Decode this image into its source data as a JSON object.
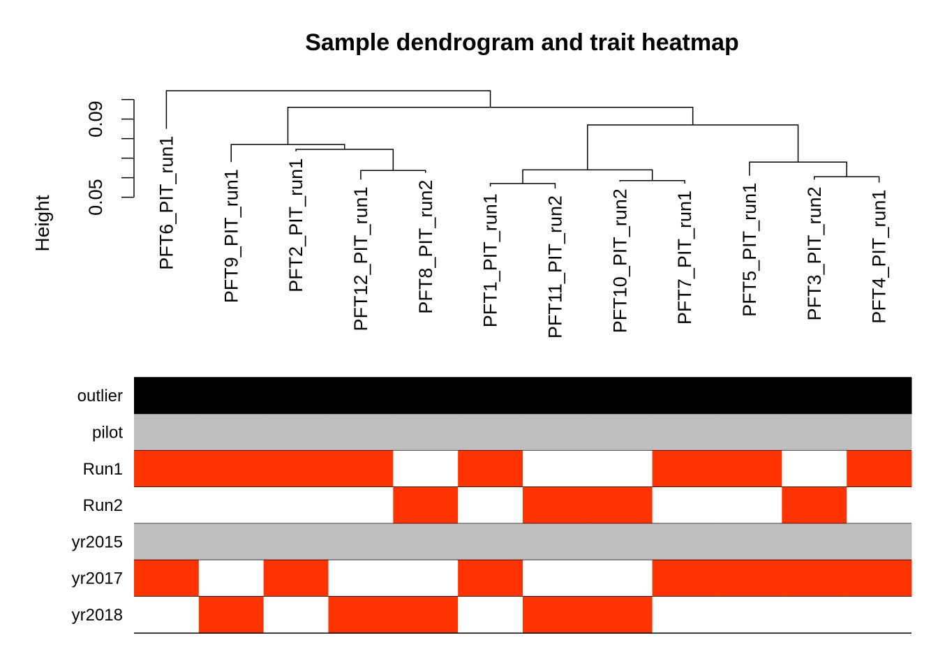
{
  "chart_data": {
    "type": "dendrogram-heatmap",
    "title": "Sample dendrogram and trait heatmap",
    "ylabel": "Height",
    "yticks": [
      0.05,
      0.09
    ],
    "ylim": [
      0.047,
      0.1045
    ],
    "leaves": [
      {
        "name": "PFT6_PIT_run1",
        "height": 0.085
      },
      {
        "name": "PFT9_PIT_run1",
        "height": 0.068
      },
      {
        "name": "PFT2_PIT_run1",
        "height": 0.0735
      },
      {
        "name": "PFT12_PIT_run1",
        "height": 0.059
      },
      {
        "name": "PFT8_PIT_run2",
        "height": 0.0625
      },
      {
        "name": "PFT1_PIT_run1",
        "height": 0.0555
      },
      {
        "name": "PFT11_PIT_run2",
        "height": 0.0545
      },
      {
        "name": "PFT10_PIT_run2",
        "height": 0.058
      },
      {
        "name": "PFT7_PIT_run1",
        "height": 0.057
      },
      {
        "name": "PFT5_PIT_run1",
        "height": 0.061
      },
      {
        "name": "PFT3_PIT_run2",
        "height": 0.059
      },
      {
        "name": "PFT4_PIT_run1",
        "height": 0.0575
      }
    ],
    "merges": [
      {
        "id": "n1",
        "children": [
          "PFT12_PIT_run1",
          "PFT8_PIT_run2"
        ],
        "height": 0.0637
      },
      {
        "id": "n2",
        "children": [
          "PFT2_PIT_run1",
          "n1"
        ],
        "height": 0.0745
      },
      {
        "id": "n3",
        "children": [
          "PFT9_PIT_run1",
          "n2"
        ],
        "height": 0.077
      },
      {
        "id": "n4",
        "children": [
          "PFT1_PIT_run1",
          "PFT11_PIT_run2"
        ],
        "height": 0.057
      },
      {
        "id": "n5",
        "children": [
          "PFT10_PIT_run2",
          "PFT7_PIT_run1"
        ],
        "height": 0.0585
      },
      {
        "id": "n6",
        "children": [
          "n4",
          "n5"
        ],
        "height": 0.064
      },
      {
        "id": "n7",
        "children": [
          "PFT3_PIT_run2",
          "PFT4_PIT_run1"
        ],
        "height": 0.0605
      },
      {
        "id": "n8",
        "children": [
          "PFT5_PIT_run1",
          "n7"
        ],
        "height": 0.068
      },
      {
        "id": "n9",
        "children": [
          "n6",
          "n8"
        ],
        "height": 0.087
      },
      {
        "id": "n10",
        "children": [
          "n3",
          "n9"
        ],
        "height": 0.096
      },
      {
        "id": "n11",
        "children": [
          "PFT6_PIT_run1",
          "n10"
        ],
        "height": 0.1045
      }
    ],
    "traits": [
      {
        "name": "outlier",
        "colors": [
          "#000000",
          "#000000",
          "#000000",
          "#000000",
          "#000000",
          "#000000",
          "#000000",
          "#000000",
          "#000000",
          "#000000",
          "#000000",
          "#000000"
        ]
      },
      {
        "name": "pilot",
        "colors": [
          "#bebebe",
          "#bebebe",
          "#bebebe",
          "#bebebe",
          "#bebebe",
          "#bebebe",
          "#bebebe",
          "#bebebe",
          "#bebebe",
          "#bebebe",
          "#bebebe",
          "#bebebe"
        ]
      },
      {
        "name": "Run1",
        "colors": [
          "#ff3300",
          "#ff3300",
          "#ff3300",
          "#ff3300",
          "#ffffff",
          "#ff3300",
          "#ffffff",
          "#ffffff",
          "#ff3300",
          "#ff3300",
          "#ffffff",
          "#ff3300"
        ]
      },
      {
        "name": "Run2",
        "colors": [
          "#ffffff",
          "#ffffff",
          "#ffffff",
          "#ffffff",
          "#ff3300",
          "#ffffff",
          "#ff3300",
          "#ff3300",
          "#ffffff",
          "#ffffff",
          "#ff3300",
          "#ffffff"
        ]
      },
      {
        "name": "yr2015",
        "colors": [
          "#bebebe",
          "#bebebe",
          "#bebebe",
          "#bebebe",
          "#bebebe",
          "#bebebe",
          "#bebebe",
          "#bebebe",
          "#bebebe",
          "#bebebe",
          "#bebebe",
          "#bebebe"
        ]
      },
      {
        "name": "yr2017",
        "colors": [
          "#ff3300",
          "#ffffff",
          "#ff3300",
          "#ffffff",
          "#ffffff",
          "#ff3300",
          "#ffffff",
          "#ffffff",
          "#ff3300",
          "#ff3300",
          "#ff3300",
          "#ff3300"
        ]
      },
      {
        "name": "yr2018",
        "colors": [
          "#ffffff",
          "#ff3300",
          "#ffffff",
          "#ff3300",
          "#ff3300",
          "#ffffff",
          "#ff3300",
          "#ff3300",
          "#ffffff",
          "#ffffff",
          "#ffffff",
          "#ffffff"
        ]
      }
    ]
  }
}
